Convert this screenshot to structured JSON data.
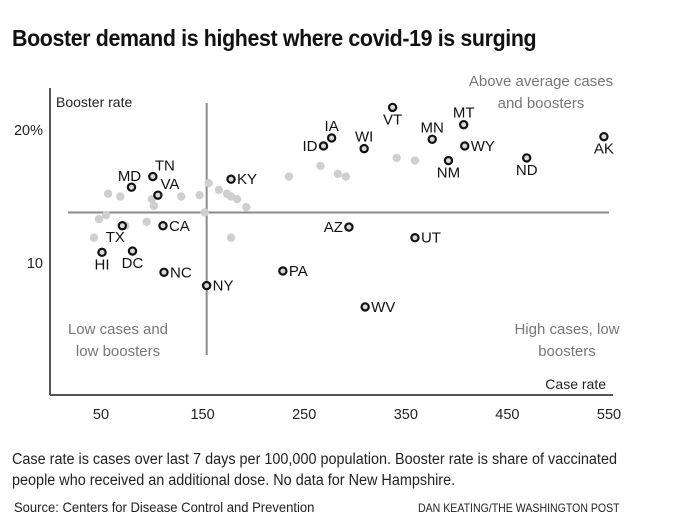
{
  "chart_data": {
    "type": "scatter",
    "title": "Booster demand is highest where covid-19 is surging",
    "xlabel": "Case rate",
    "ylabel": "Booster rate",
    "xlim": [
      0,
      555
    ],
    "ylim": [
      0,
      23
    ],
    "x_ticks": [
      {
        "value": 50,
        "label": "50"
      },
      {
        "value": 150,
        "label": "150"
      },
      {
        "value": 250,
        "label": "250"
      },
      {
        "value": 350,
        "label": "350"
      },
      {
        "value": 450,
        "label": "450"
      },
      {
        "value": 550,
        "label": "550"
      }
    ],
    "y_ticks": [
      {
        "value": 20,
        "label": "20%"
      },
      {
        "value": 10,
        "label": "10"
      }
    ],
    "grid": false,
    "average_lines": {
      "case_rate": 154,
      "booster_rate": 13.8
    },
    "quadrant_labels": {
      "top_right": [
        "Above average cases",
        "and boosters"
      ],
      "bottom_left": [
        "Low cases and",
        "low boosters"
      ],
      "bottom_right": [
        "High cases, low",
        "boosters"
      ]
    },
    "labeled_points": [
      {
        "state": "HI",
        "x": 51,
        "y": 10.8,
        "label_pos": "below"
      },
      {
        "state": "TX",
        "x": 71,
        "y": 12.8,
        "label_pos": "below-left"
      },
      {
        "state": "DC",
        "x": 81,
        "y": 10.9,
        "label_pos": "below"
      },
      {
        "state": "MD",
        "x": 80,
        "y": 15.7,
        "label_pos": "above-left"
      },
      {
        "state": "TN",
        "x": 101,
        "y": 16.5,
        "label_pos": "above-right"
      },
      {
        "state": "VA",
        "x": 106,
        "y": 15.1,
        "label_pos": "above-right"
      },
      {
        "state": "CA",
        "x": 111,
        "y": 12.8,
        "label_pos": "right"
      },
      {
        "state": "NC",
        "x": 112,
        "y": 9.3,
        "label_pos": "right"
      },
      {
        "state": "NY",
        "x": 154,
        "y": 8.3,
        "label_pos": "right"
      },
      {
        "state": "KY",
        "x": 178,
        "y": 16.3,
        "label_pos": "right"
      },
      {
        "state": "PA",
        "x": 229,
        "y": 9.4,
        "label_pos": "right"
      },
      {
        "state": "ID",
        "x": 269,
        "y": 18.8,
        "label_pos": "left"
      },
      {
        "state": "IA",
        "x": 277,
        "y": 19.4,
        "label_pos": "above"
      },
      {
        "state": "AZ",
        "x": 294,
        "y": 12.7,
        "label_pos": "left"
      },
      {
        "state": "WI",
        "x": 309,
        "y": 18.6,
        "label_pos": "above"
      },
      {
        "state": "WV",
        "x": 310,
        "y": 6.7,
        "label_pos": "right"
      },
      {
        "state": "VT",
        "x": 337,
        "y": 21.7,
        "label_pos": "below"
      },
      {
        "state": "UT",
        "x": 359,
        "y": 11.9,
        "label_pos": "right"
      },
      {
        "state": "MN",
        "x": 376,
        "y": 19.3,
        "label_pos": "above"
      },
      {
        "state": "NM",
        "x": 392,
        "y": 17.7,
        "label_pos": "below"
      },
      {
        "state": "MT",
        "x": 407,
        "y": 20.4,
        "label_pos": "above"
      },
      {
        "state": "WY",
        "x": 408,
        "y": 18.8,
        "label_pos": "right"
      },
      {
        "state": "ND",
        "x": 469,
        "y": 17.9,
        "label_pos": "below"
      },
      {
        "state": "AK",
        "x": 545,
        "y": 19.5,
        "label_pos": "below"
      }
    ],
    "unlabeled_points": [
      {
        "x": 57,
        "y": 15.2
      },
      {
        "x": 69,
        "y": 15.0
      },
      {
        "x": 100,
        "y": 14.8
      },
      {
        "x": 102,
        "y": 14.3
      },
      {
        "x": 129,
        "y": 15.0
      },
      {
        "x": 147,
        "y": 15.1
      },
      {
        "x": 156,
        "y": 16.0
      },
      {
        "x": 166,
        "y": 15.5
      },
      {
        "x": 174,
        "y": 15.2
      },
      {
        "x": 178,
        "y": 15.0
      },
      {
        "x": 184,
        "y": 14.8
      },
      {
        "x": 193,
        "y": 14.2
      },
      {
        "x": 48,
        "y": 13.3
      },
      {
        "x": 55,
        "y": 13.6
      },
      {
        "x": 74,
        "y": 12.8
      },
      {
        "x": 95,
        "y": 13.1
      },
      {
        "x": 152,
        "y": 13.8
      },
      {
        "x": 43,
        "y": 11.9
      },
      {
        "x": 178,
        "y": 11.9
      },
      {
        "x": 235,
        "y": 16.5
      },
      {
        "x": 266,
        "y": 17.3
      },
      {
        "x": 283,
        "y": 16.7
      },
      {
        "x": 291,
        "y": 16.5
      },
      {
        "x": 341,
        "y": 17.9
      },
      {
        "x": 359,
        "y": 17.7
      }
    ]
  },
  "footer": {
    "note": "Case rate is cases over last 7 days per 100,000 population. Booster rate is share of vaccinated people who received an additional dose. No data for New Hampshire.",
    "source": "Source: Centers for Disease Control and Prevention",
    "credit": "DAN KEATING/THE WASHINGTON POST"
  }
}
